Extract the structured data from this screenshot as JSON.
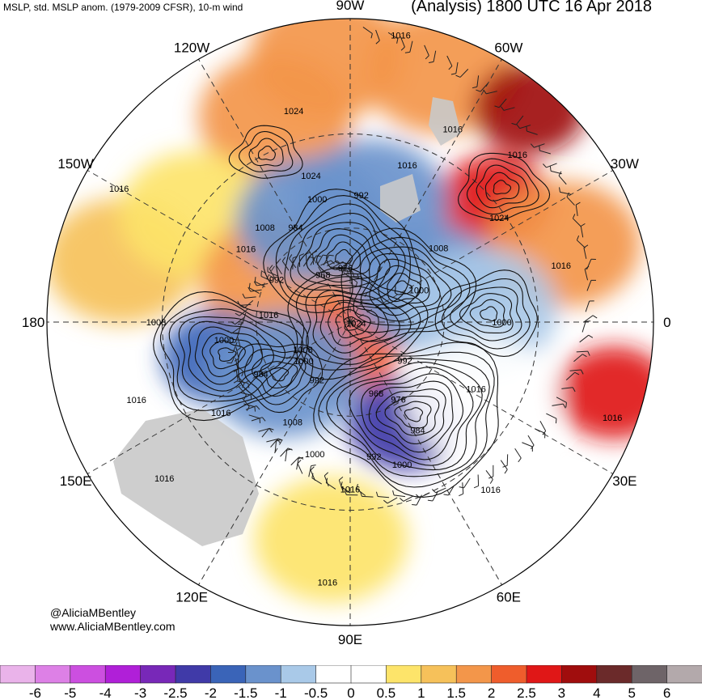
{
  "header": {
    "left_title": "MSLP, std. MSLP anom. (1979-2009 CFSR), 10-m wind",
    "right_title": "(Analysis) 1800 UTC 16 Apr 2018"
  },
  "credit": {
    "twitter": "@AliciaMBentley",
    "website": "www.AliciaMBentley.com"
  },
  "longitude_labels": [
    {
      "text": "90W",
      "angle_deg": 0
    },
    {
      "text": "60W",
      "angle_deg": 30
    },
    {
      "text": "30W",
      "angle_deg": 60
    },
    {
      "text": "0",
      "angle_deg": 90
    },
    {
      "text": "30E",
      "angle_deg": 120
    },
    {
      "text": "60E",
      "angle_deg": 150
    },
    {
      "text": "90E",
      "angle_deg": 180
    },
    {
      "text": "120E",
      "angle_deg": 210
    },
    {
      "text": "150E",
      "angle_deg": 240
    },
    {
      "text": "180",
      "angle_deg": 270
    },
    {
      "text": "150W",
      "angle_deg": 300
    },
    {
      "text": "120W",
      "angle_deg": 330
    }
  ],
  "pressure_labels_hpa": [
    {
      "text": "1016",
      "lon_angle": 10,
      "r_frac": 0.96
    },
    {
      "text": "1016",
      "lon_angle": 300,
      "r_frac": 0.88
    },
    {
      "text": "1024",
      "lon_angle": 345,
      "r_frac": 0.72
    },
    {
      "text": "1024",
      "lon_angle": 345,
      "r_frac": 0.5
    },
    {
      "text": "1016",
      "lon_angle": 28,
      "r_frac": 0.72
    },
    {
      "text": "1016",
      "lon_angle": 20,
      "r_frac": 0.55
    },
    {
      "text": "1016",
      "lon_angle": 45,
      "r_frac": 0.78
    },
    {
      "text": "1024",
      "lon_angle": 55,
      "r_frac": 0.6
    },
    {
      "text": "1008",
      "lon_angle": 50,
      "r_frac": 0.38
    },
    {
      "text": "1000",
      "lon_angle": 65,
      "r_frac": 0.25
    },
    {
      "text": "1016",
      "lon_angle": 75,
      "r_frac": 0.72
    },
    {
      "text": "1000",
      "lon_angle": 90,
      "r_frac": 0.5
    },
    {
      "text": "992",
      "lon_angle": 5,
      "r_frac": 0.42
    },
    {
      "text": "1000",
      "lon_angle": 345,
      "r_frac": 0.42
    },
    {
      "text": "984",
      "lon_angle": 330,
      "r_frac": 0.36
    },
    {
      "text": "1008",
      "lon_angle": 318,
      "r_frac": 0.42
    },
    {
      "text": "1016",
      "lon_angle": 305,
      "r_frac": 0.42
    },
    {
      "text": "992",
      "lon_angle": 300,
      "r_frac": 0.28
    },
    {
      "text": "968",
      "lon_angle": 330,
      "r_frac": 0.18
    },
    {
      "text": "976",
      "lon_angle": 355,
      "r_frac": 0.18
    },
    {
      "text": "1016",
      "lon_angle": 275,
      "r_frac": 0.27
    },
    {
      "text": "1024",
      "lon_angle": 100,
      "r_frac": 0.02
    },
    {
      "text": "1008",
      "lon_angle": 240,
      "r_frac": 0.18
    },
    {
      "text": "1000",
      "lon_angle": 230,
      "r_frac": 0.2
    },
    {
      "text": "992",
      "lon_angle": 210,
      "r_frac": 0.22
    },
    {
      "text": "1008",
      "lon_angle": 270,
      "r_frac": 0.64
    },
    {
      "text": "1000",
      "lon_angle": 262,
      "r_frac": 0.42
    },
    {
      "text": "984",
      "lon_angle": 240,
      "r_frac": 0.34
    },
    {
      "text": "1016",
      "lon_angle": 250,
      "r_frac": 0.75
    },
    {
      "text": "1016",
      "lon_angle": 235,
      "r_frac": 0.52
    },
    {
      "text": "1008",
      "lon_angle": 210,
      "r_frac": 0.38
    },
    {
      "text": "1000",
      "lon_angle": 195,
      "r_frac": 0.45
    },
    {
      "text": "992",
      "lon_angle": 170,
      "r_frac": 0.45
    },
    {
      "text": "1016",
      "lon_angle": 180,
      "r_frac": 0.55
    },
    {
      "text": "968",
      "lon_angle": 160,
      "r_frac": 0.25
    },
    {
      "text": "976",
      "lon_angle": 148,
      "r_frac": 0.3
    },
    {
      "text": "984",
      "lon_angle": 148,
      "r_frac": 0.42
    },
    {
      "text": "1000",
      "lon_angle": 160,
      "r_frac": 0.5
    },
    {
      "text": "992",
      "lon_angle": 125,
      "r_frac": 0.22
    },
    {
      "text": "1016",
      "lon_angle": 118,
      "r_frac": 0.47
    },
    {
      "text": "1016",
      "lon_angle": 110,
      "r_frac": 0.92
    },
    {
      "text": "1016",
      "lon_angle": 140,
      "r_frac": 0.72
    },
    {
      "text": "1016",
      "lon_angle": 230,
      "r_frac": 0.8
    },
    {
      "text": "1016",
      "lon_angle": 185,
      "r_frac": 0.86
    }
  ],
  "anomaly_shading": [
    {
      "lon_angle": 340,
      "r_frac": 0.72,
      "value": 1.5
    },
    {
      "lon_angle": 355,
      "r_frac": 0.88,
      "value": 1.5
    },
    {
      "lon_angle": 20,
      "r_frac": 0.88,
      "value": 1.5
    },
    {
      "lon_angle": 40,
      "r_frac": 0.92,
      "value": 3
    },
    {
      "lon_angle": 50,
      "r_frac": 0.62,
      "value": 2.5
    },
    {
      "lon_angle": 70,
      "r_frac": 0.75,
      "value": 1.5
    },
    {
      "lon_angle": 105,
      "r_frac": 0.9,
      "value": 2.5
    },
    {
      "lon_angle": 285,
      "r_frac": 0.78,
      "value": 1
    },
    {
      "lon_angle": 305,
      "r_frac": 0.62,
      "value": 0.5
    },
    {
      "lon_angle": 300,
      "r_frac": 0.28,
      "value": 1.5
    },
    {
      "lon_angle": 195,
      "r_frac": 0.08,
      "value": 2
    },
    {
      "lon_angle": 10,
      "r_frac": 0.4,
      "value": -1.5
    },
    {
      "lon_angle": 340,
      "r_frac": 0.36,
      "value": -1.5
    },
    {
      "lon_angle": 65,
      "r_frac": 0.28,
      "value": -1.5
    },
    {
      "lon_angle": 85,
      "r_frac": 0.43,
      "value": -1
    },
    {
      "lon_angle": 255,
      "r_frac": 0.45,
      "value": -2
    },
    {
      "lon_angle": 232,
      "r_frac": 0.28,
      "value": -1.5
    },
    {
      "lon_angle": 152,
      "r_frac": 0.38,
      "value": -2.5
    },
    {
      "lon_angle": 120,
      "r_frac": 0.5,
      "value": -0.5
    },
    {
      "lon_angle": 185,
      "r_frac": 0.72,
      "value": 0.5
    }
  ],
  "colorbar": {
    "ticks": [
      "-6",
      "-5",
      "-4",
      "-3",
      "-2.5",
      "-2",
      "-1.5",
      "-1",
      "-0.5",
      "0",
      "0.5",
      "1",
      "1.5",
      "2",
      "2.5",
      "3",
      "4",
      "5",
      "6"
    ],
    "colors": [
      "#eab3ea",
      "#dd80e6",
      "#cc4fe0",
      "#b01fd8",
      "#7828b8",
      "#403aa8",
      "#3a64b8",
      "#6a92cc",
      "#a9c9e8",
      "#ffffff",
      "#ffffff",
      "#fde46a",
      "#f6c15a",
      "#f3964a",
      "#ef5d2c",
      "#e01717",
      "#a00d0d",
      "#6b2a2a",
      "#6e6468",
      "#b3a9ab"
    ]
  }
}
